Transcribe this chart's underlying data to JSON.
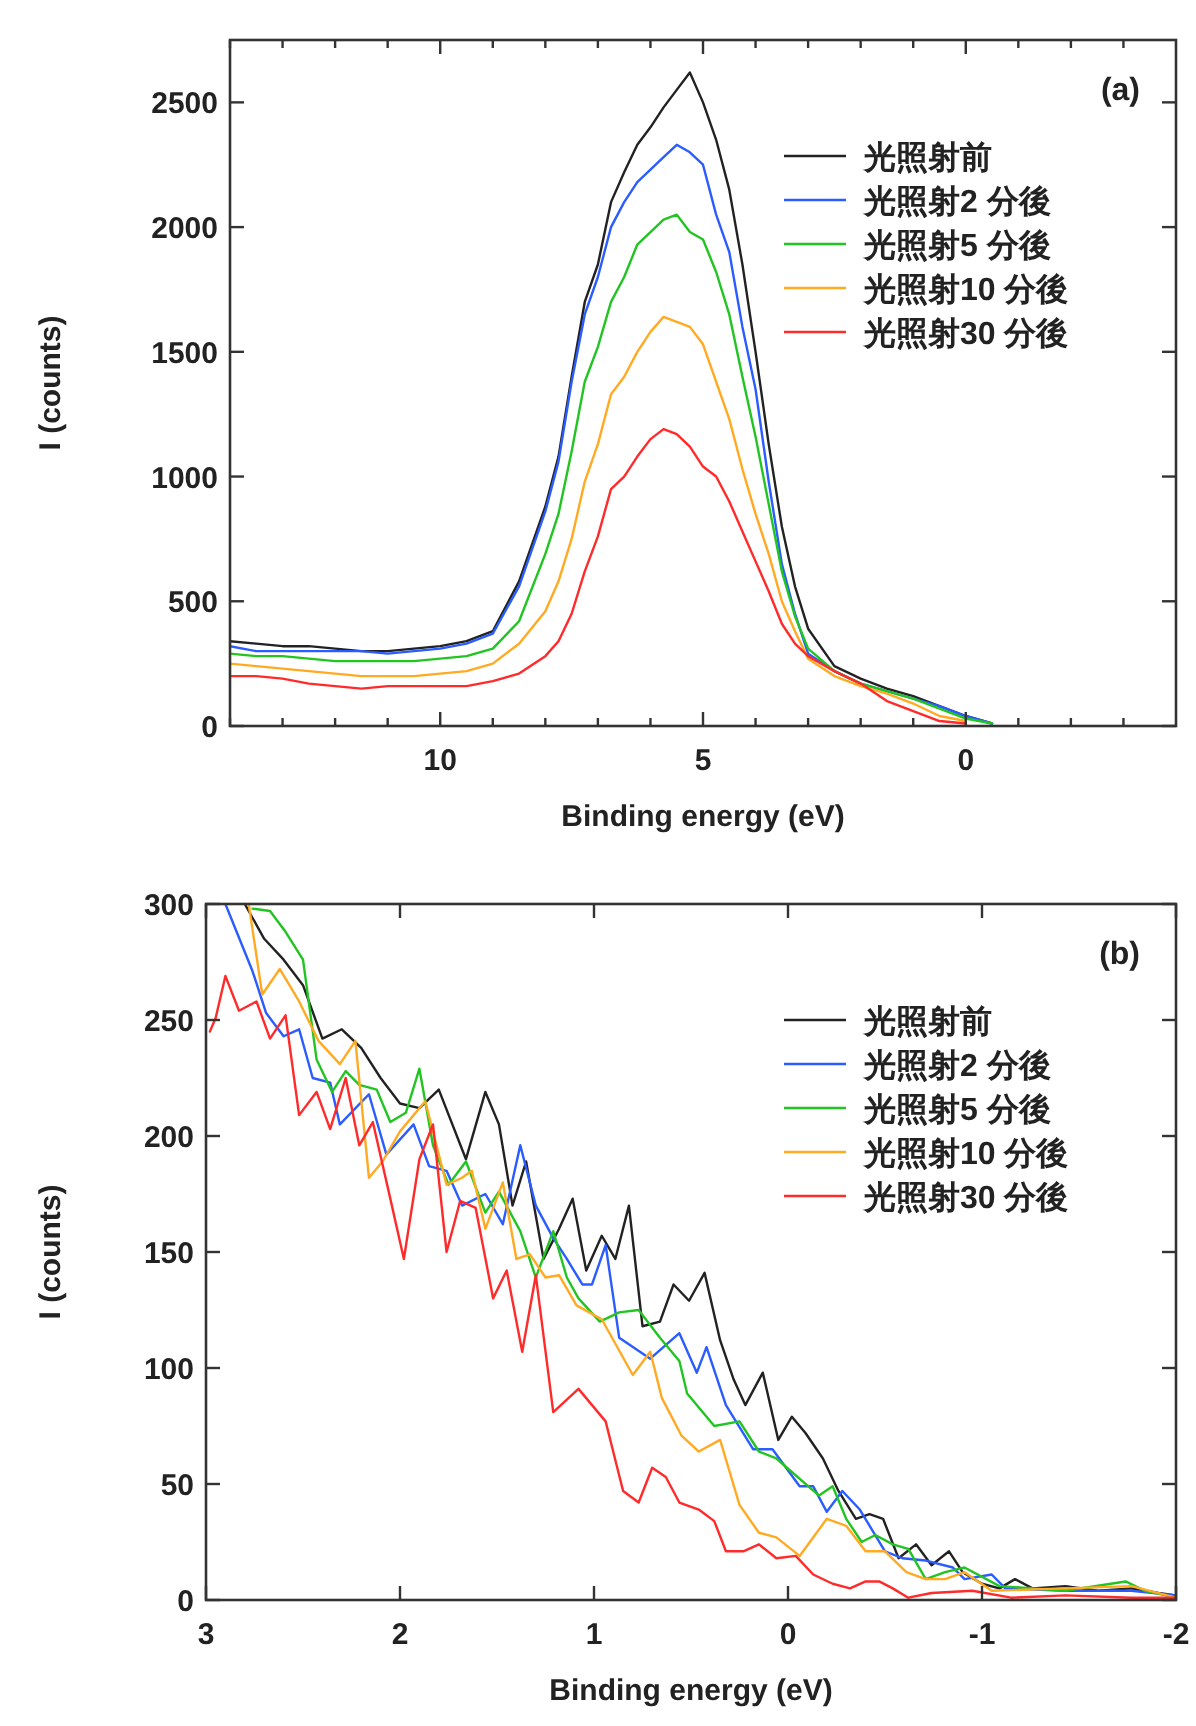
{
  "chart_data": [
    {
      "type": "line",
      "annotations": [
        "(a)"
      ],
      "xlabel": "Binding energy (eV)",
      "ylabel": "I (counts)",
      "xlim": [
        14,
        -4
      ],
      "ylim": [
        0,
        2750
      ],
      "xticks": [
        {
          "value": 14,
          "label": null
        },
        {
          "value": 13,
          "label": null
        },
        {
          "value": 12,
          "label": null
        },
        {
          "value": 11,
          "label": null
        },
        10,
        {
          "value": 9,
          "label": null
        },
        {
          "value": 8,
          "label": null
        },
        {
          "value": 7,
          "label": null
        },
        {
          "value": 6,
          "label": null
        },
        5,
        {
          "value": 4,
          "label": null
        },
        {
          "value": 3,
          "label": null
        },
        {
          "value": 2,
          "label": null
        },
        {
          "value": 1,
          "label": null
        },
        0,
        {
          "value": -1,
          "label": null
        },
        {
          "value": -2,
          "label": null
        },
        {
          "value": -3,
          "label": null
        }
      ],
      "yticks": [
        0,
        500,
        1000,
        1500,
        2000,
        2500
      ],
      "legend": "top right",
      "x": [
        14,
        13.5,
        13,
        12.5,
        12,
        11.5,
        11,
        10.5,
        10,
        9.5,
        9,
        8.5,
        8,
        7.75,
        7.5,
        7.25,
        7,
        6.75,
        6.5,
        6.25,
        6,
        5.75,
        5.5,
        5.25,
        5,
        4.75,
        4.5,
        4.25,
        4,
        3.75,
        3.5,
        3.25,
        3,
        2.5,
        2,
        1.5,
        1,
        0.5,
        0,
        -0.5
      ],
      "series": [
        {
          "name": "光照射前",
          "color": "#222222",
          "values": [
            340,
            330,
            320,
            320,
            310,
            300,
            300,
            310,
            320,
            340,
            380,
            580,
            880,
            1080,
            1400,
            1700,
            1850,
            2100,
            2220,
            2330,
            2400,
            2480,
            2550,
            2620,
            2500,
            2350,
            2150,
            1850,
            1500,
            1130,
            800,
            560,
            390,
            240,
            190,
            150,
            120,
            80,
            40,
            10
          ]
        },
        {
          "name": "光照射2 分後",
          "color": "#2a5cff",
          "values": [
            320,
            300,
            300,
            300,
            300,
            300,
            290,
            300,
            310,
            330,
            370,
            560,
            860,
            1060,
            1380,
            1650,
            1800,
            2000,
            2100,
            2180,
            2230,
            2280,
            2330,
            2300,
            2250,
            2050,
            1900,
            1600,
            1350,
            980,
            650,
            450,
            290,
            220,
            170,
            140,
            110,
            80,
            40,
            10
          ]
        },
        {
          "name": "光照射5 分後",
          "color": "#22c422",
          "values": [
            290,
            280,
            280,
            270,
            260,
            260,
            260,
            260,
            270,
            280,
            310,
            420,
            690,
            850,
            1100,
            1380,
            1520,
            1700,
            1800,
            1930,
            1980,
            2030,
            2050,
            1980,
            1950,
            1820,
            1650,
            1400,
            1160,
            890,
            620,
            440,
            310,
            220,
            170,
            140,
            110,
            70,
            30,
            10
          ]
        },
        {
          "name": "光照射10 分後",
          "color": "#ffaa22",
          "values": [
            250,
            240,
            230,
            220,
            210,
            200,
            200,
            200,
            210,
            220,
            250,
            330,
            460,
            580,
            750,
            980,
            1130,
            1330,
            1400,
            1500,
            1580,
            1640,
            1620,
            1600,
            1530,
            1380,
            1230,
            1030,
            850,
            690,
            500,
            380,
            270,
            200,
            160,
            130,
            90,
            40,
            20,
            null
          ]
        },
        {
          "name": "光照射30 分後",
          "color": "#ff2a2a",
          "values": [
            200,
            200,
            190,
            170,
            160,
            150,
            160,
            160,
            160,
            160,
            180,
            210,
            280,
            340,
            450,
            620,
            760,
            950,
            1000,
            1080,
            1150,
            1190,
            1170,
            1120,
            1040,
            1000,
            900,
            780,
            660,
            540,
            410,
            330,
            280,
            220,
            170,
            100,
            60,
            20,
            10,
            null
          ]
        }
      ]
    },
    {
      "type": "line",
      "annotations": [
        "(b)"
      ],
      "xlabel": "Binding energy (eV)",
      "ylabel": "I (counts)",
      "xlim": [
        3,
        -2
      ],
      "ylim": [
        0,
        300
      ],
      "xticks": [
        3,
        2,
        1,
        0,
        -1,
        -2
      ],
      "yticks": [
        0,
        50,
        100,
        150,
        200,
        250,
        300
      ],
      "legend": "top right",
      "series": [
        {
          "name": "光照射前",
          "color": "#222222",
          "x": [
            2.8,
            2.7,
            2.6,
            2.5,
            2.4,
            2.3,
            2.2,
            2.1,
            2.0,
            1.9,
            1.8,
            1.66,
            1.56,
            1.49,
            1.42,
            1.35,
            1.26,
            1.18,
            1.11,
            1.04,
            0.96,
            0.89,
            0.82,
            0.75,
            0.66,
            0.59,
            0.51,
            0.43,
            0.35,
            0.28,
            0.22,
            0.13,
            0.05,
            -0.02,
            -0.09,
            -0.18,
            -0.26,
            -0.35,
            -0.42,
            -0.49,
            -0.57,
            -0.66,
            -0.74,
            -0.83,
            -0.9,
            -1.0,
            -1.09,
            -1.17,
            -1.26,
            -1.43,
            -1.6,
            -1.77,
            -1.91,
            -2.0
          ],
          "values": [
            300,
            285,
            276,
            265,
            242,
            246,
            238,
            225,
            214,
            212,
            220,
            190,
            219,
            205,
            170,
            189,
            147,
            160,
            173,
            142,
            157,
            147,
            170,
            118,
            120,
            136,
            129,
            141,
            112,
            95,
            84,
            98,
            69,
            79,
            72,
            61,
            47,
            35,
            37,
            35,
            18,
            24,
            15,
            21,
            12,
            7,
            5,
            9,
            5,
            6,
            4,
            5,
            3,
            2
          ]
        },
        {
          "name": "光照射2 分後",
          "color": "#2a5cff",
          "x": [
            2.9,
            2.76,
            2.69,
            2.6,
            2.52,
            2.45,
            2.36,
            2.31,
            2.16,
            2.07,
            1.93,
            1.85,
            1.76,
            1.68,
            1.56,
            1.47,
            1.38,
            1.3,
            1.21,
            1.14,
            1.06,
            1.01,
            0.94,
            0.87,
            0.71,
            0.56,
            0.47,
            0.42,
            0.32,
            0.18,
            0.08,
            -0.06,
            -0.13,
            -0.2,
            -0.28,
            -0.37,
            -0.5,
            -0.59,
            -0.71,
            -0.85,
            -0.91,
            -1.05,
            -1.12,
            -1.43,
            -1.77,
            -2.0
          ],
          "values": [
            300,
            271,
            253,
            243,
            246,
            225,
            223,
            205,
            218,
            192,
            205,
            187,
            185,
            170,
            175,
            162,
            196,
            170,
            156,
            147,
            136,
            136,
            153,
            113,
            104,
            115,
            98,
            109,
            84,
            65,
            65,
            49,
            49,
            38,
            47,
            39,
            21,
            18,
            17,
            14,
            9,
            11,
            5,
            4,
            4,
            2
          ]
        },
        {
          "name": "光照射5 分後",
          "color": "#22c422",
          "x": [
            2.76,
            2.67,
            2.59,
            2.5,
            2.43,
            2.35,
            2.28,
            2.21,
            2.12,
            2.05,
            1.97,
            1.9,
            1.83,
            1.75,
            1.66,
            1.56,
            1.49,
            1.38,
            1.3,
            1.21,
            1.14,
            1.08,
            0.97,
            0.87,
            0.77,
            0.66,
            0.56,
            0.52,
            0.38,
            0.25,
            0.15,
            0.06,
            -0.16,
            -0.23,
            -0.3,
            -0.38,
            -0.45,
            -0.54,
            -0.62,
            -0.71,
            -0.81,
            -0.91,
            -1.09,
            -1.43,
            -1.74,
            -1.84,
            -2.0
          ],
          "values": [
            298,
            297,
            288,
            276,
            233,
            219,
            228,
            222,
            220,
            206,
            210,
            229,
            196,
            179,
            189,
            167,
            176,
            159,
            139,
            159,
            139,
            130,
            120,
            124,
            125,
            113,
            103,
            89,
            75,
            77,
            64,
            61,
            45,
            49,
            35,
            25,
            28,
            24,
            22,
            9,
            12,
            14,
            6,
            4,
            8,
            4,
            1
          ]
        },
        {
          "name": "光照射10 分後",
          "color": "#ffaa22",
          "x": [
            2.78,
            2.71,
            2.62,
            2.52,
            2.42,
            2.31,
            2.23,
            2.16,
            2.09,
            2.0,
            1.87,
            1.76,
            1.68,
            1.63,
            1.56,
            1.47,
            1.4,
            1.33,
            1.25,
            1.18,
            1.09,
            0.96,
            0.8,
            0.71,
            0.65,
            0.55,
            0.46,
            0.35,
            0.25,
            0.15,
            0.06,
            -0.06,
            -0.2,
            -0.3,
            -0.4,
            -0.5,
            -0.61,
            -0.71,
            -0.81,
            -0.91,
            -1.05,
            -1.43,
            -1.77,
            -2.0
          ],
          "values": [
            300,
            261,
            272,
            258,
            241,
            231,
            241,
            182,
            189,
            202,
            215,
            179,
            182,
            185,
            160,
            180,
            147,
            149,
            139,
            140,
            127,
            121,
            97,
            107,
            87,
            71,
            64,
            69,
            41,
            29,
            27,
            19,
            35,
            32,
            21,
            21,
            12,
            9,
            9,
            12,
            4,
            5,
            6,
            1
          ]
        },
        {
          "name": "光照射30 分後",
          "color": "#ff2a2a",
          "x": [
            2.98,
            2.95,
            2.9,
            2.83,
            2.74,
            2.67,
            2.59,
            2.52,
            2.43,
            2.36,
            2.28,
            2.21,
            2.14,
            2.05,
            1.98,
            1.9,
            1.83,
            1.76,
            1.69,
            1.61,
            1.52,
            1.45,
            1.37,
            1.3,
            1.21,
            1.08,
            1.01,
            0.94,
            0.85,
            0.77,
            0.7,
            0.63,
            0.56,
            0.46,
            0.38,
            0.32,
            0.23,
            0.15,
            0.06,
            -0.04,
            -0.13,
            -0.23,
            -0.32,
            -0.4,
            -0.47,
            -0.54,
            -0.62,
            -0.74,
            -0.95,
            -1.15,
            -1.43,
            -1.77,
            -2.0
          ],
          "values": [
            245,
            251,
            269,
            254,
            258,
            242,
            252,
            209,
            219,
            203,
            225,
            196,
            206,
            173,
            147,
            190,
            205,
            150,
            172,
            169,
            130,
            142,
            107,
            140,
            81,
            91,
            84,
            77,
            47,
            42,
            57,
            53,
            42,
            39,
            34,
            21,
            21,
            24,
            18,
            19,
            11,
            7,
            5,
            8,
            8,
            5,
            1,
            3,
            4,
            1,
            2,
            1,
            1
          ]
        }
      ]
    }
  ]
}
